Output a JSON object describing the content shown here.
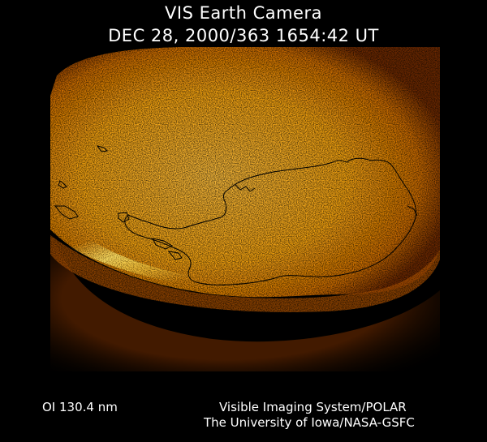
{
  "header": {
    "line1": "VIS Earth Camera",
    "line2": "DEC 28, 2000/363 1654:42 UT"
  },
  "image": {
    "icon": "earth-camera-image",
    "colors": {
      "space": "#000000",
      "glow_core": "#fff27a",
      "glow_mid": "#f0a010",
      "glow_outer": "#c06000",
      "limb_dark": "#4a1a00",
      "coastline": "#000000"
    }
  },
  "footer": {
    "filter": "OI  130.4 nm",
    "instrument": "Visible Imaging System/POLAR",
    "institution": "The University of Iowa/NASA-GSFC"
  }
}
